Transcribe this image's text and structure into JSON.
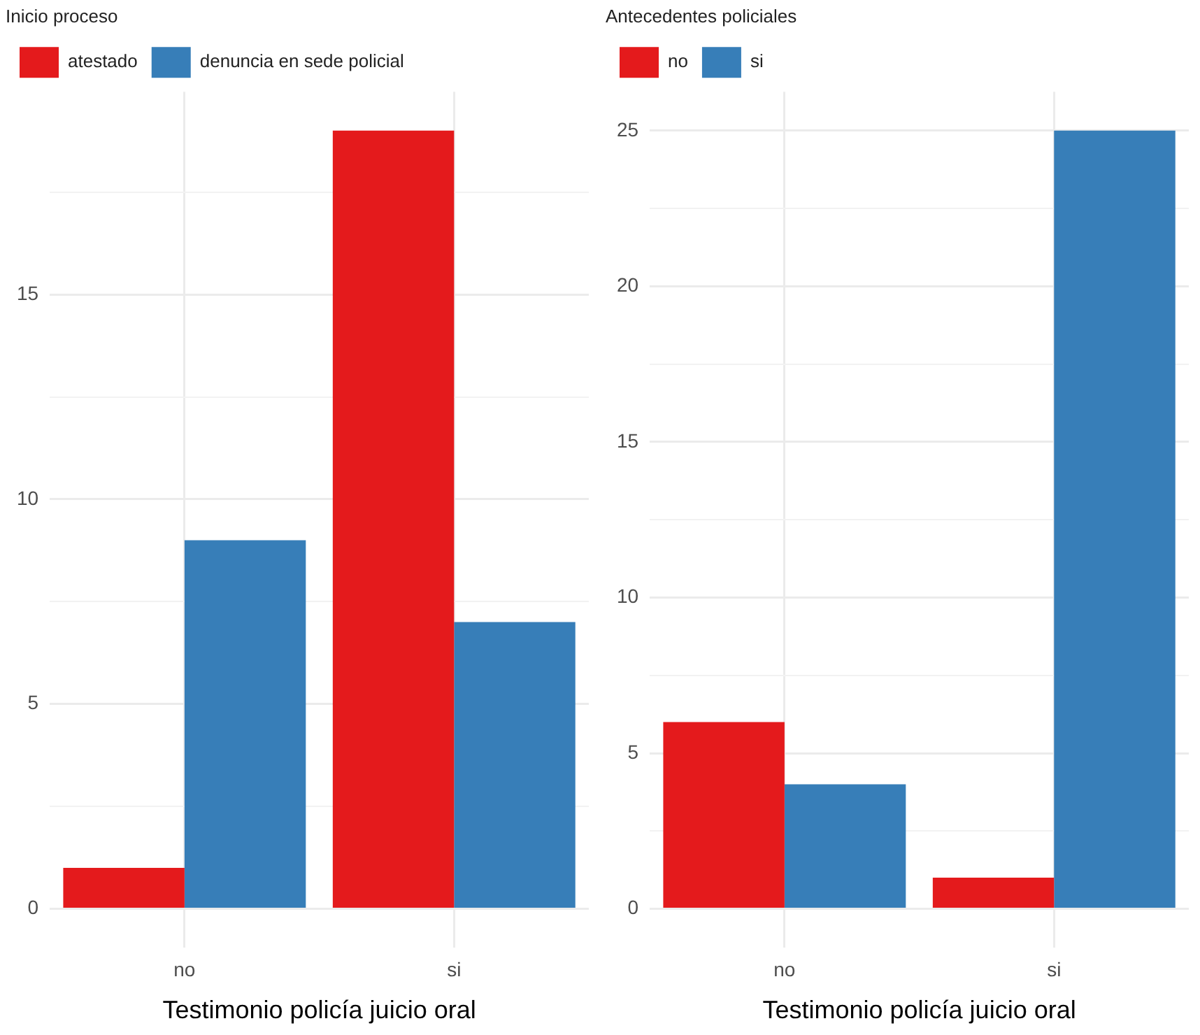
{
  "chart_data": [
    {
      "type": "bar",
      "xlabel": "Testimonio policía juicio oral",
      "legend_title": "Inicio proceso",
      "categories": [
        "no",
        "si"
      ],
      "series": [
        {
          "name": "atestado",
          "color": "#e41a1c",
          "values": [
            1,
            19
          ]
        },
        {
          "name": "denuncia en sede policial",
          "color": "#377eb8",
          "values": [
            9,
            7
          ]
        }
      ],
      "ylim": [
        -0.95,
        19.95
      ],
      "yticks": [
        0,
        {
          "value": 2.5,
          "label": null
        },
        5,
        {
          "value": 7.5,
          "label": null
        },
        10,
        {
          "value": 12.5,
          "label": null
        },
        15,
        {
          "value": 17.5,
          "label": null
        }
      ],
      "grid": true,
      "legend": "top"
    },
    {
      "type": "bar",
      "xlabel": "Testimonio policía juicio oral",
      "legend_title": "Antecedentes policiales",
      "categories": [
        "no",
        "si"
      ],
      "series": [
        {
          "name": "no",
          "color": "#e41a1c",
          "values": [
            6,
            1
          ]
        },
        {
          "name": "si",
          "color": "#377eb8",
          "values": [
            4,
            25
          ]
        }
      ],
      "ylim": [
        -1.25,
        26.25
      ],
      "yticks": [
        0,
        {
          "value": 2.5,
          "label": null
        },
        5,
        {
          "value": 7.5,
          "label": null
        },
        10,
        {
          "value": 12.5,
          "label": null
        },
        15,
        {
          "value": 17.5,
          "label": null
        },
        20,
        {
          "value": 22.5,
          "label": null
        },
        25
      ],
      "grid": true,
      "legend": "top"
    }
  ]
}
